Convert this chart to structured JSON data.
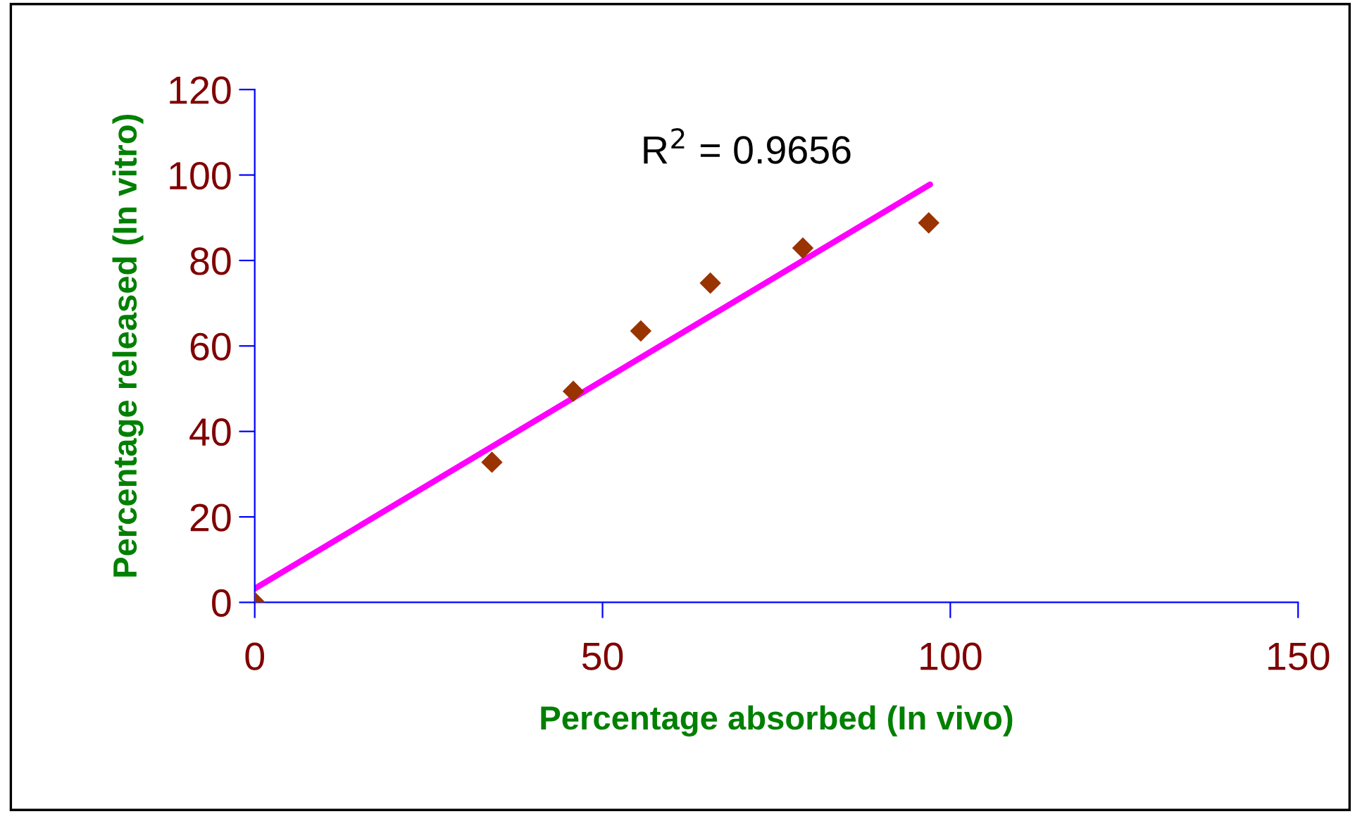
{
  "chart_data": {
    "type": "scatter",
    "xlabel": "Percentage absorbed (In vivo)",
    "ylabel": "Percentage released (In vitro)",
    "annotations": [
      "R$^{2}$ = 0.9656"
    ],
    "xlim": [
      0,
      150
    ],
    "xticks": [
      0,
      50,
      100,
      150
    ],
    "ylim": [
      0,
      120
    ],
    "yticks": [
      0,
      20,
      40,
      60,
      80,
      100,
      120
    ],
    "grid": false,
    "legend": false,
    "series": [
      {
        "color": "#993300",
        "marker": "diamond",
        "x": [
          0,
          34.1,
          45.8,
          55.5,
          65.5,
          78.8,
          96.9
        ],
        "values": [
          0,
          32.8,
          49.4,
          63.5,
          74.7,
          82.9,
          88.8
        ]
      },
      {
        "type": "line",
        "color": "#ff00ff",
        "marker": "none",
        "line_style": "solid",
        "x": [
          0,
          97.1
        ],
        "values": [
          3.2,
          97.8
        ]
      }
    ]
  }
}
